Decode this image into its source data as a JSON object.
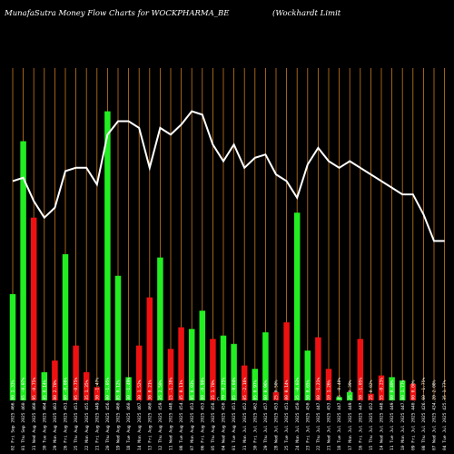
{
  "chart_data": {
    "type": "bar",
    "title": "MunafaSutra  Money Flow  Charts for WOCKPHARMA_BE",
    "subtitle": "(Wockhardt Limit",
    "center_marker": "C",
    "colors": {
      "background": "#000000",
      "grid": "#c87a1e",
      "up": "#22ee22",
      "down": "#ee1111",
      "line": "#ffffff",
      "text": "#ffffff"
    },
    "categories": [
      "02 Fri Sep 2025 466.80 1.33%",
      "01 Thu Sep 2025 460.65 -0.07%",
      "31 Wed Aug 2025 460.95 -0.75%",
      "30 Tue Aug 2025 464.45 0.14%",
      "29 Mon Aug 2025 463.80 2.70%",
      "26 Fri Aug 2025 451.60 -0.08%",
      "25 Thu Aug 2025 451.95 -0.75%",
      "22 Mon Aug 2025 455.35 1.35%",
      "21 Fri Aug 2025 449.30 -1.47%",
      "20 Thu Aug 2025 456.00 -1.05%",
      "19 Wed Aug 2025 460.85 0.12%",
      "18 Tue Aug 2025 460.30 -1.49%",
      "14 Mon Aug 2025 467.30 1.52%",
      "13 Fri Aug 2025 460.30 0.21%",
      "12 Thu Aug 2025 459.35 2.50%",
      "11 Wed Aug 2025 448.15 -1.38%",
      "08 Tue Aug 2025 454.45 0.11%",
      "07 Mon Aug 2025 453.95 0.03%",
      "06 Fri Aug 2025 453.80 -0.99%",
      "05 Thu Aug 2025 458.35 1.70%",
      "04 Wed Aug 2025 450.70 -0.25%",
      "01 Tue Aug 2025 451.85 -0.04%",
      "31 Mon Jul 2025 452.05 -2.16%",
      "30 Fri Jul 2025 462.05 0.97%",
      "29 Thu Jul 2025 457.60 0.96%",
      "28 Wed Jul 2025 453.25 0.50%",
      "25 Tue Jul 2025 451.00 0.14%",
      "24 Mon Jul 2025 450.35 -0.03%",
      "23 Fri Jul 2025 450.50 0.65%",
      "22 Thu Jul 2025 447.60 -1.21%",
      "21 Wed Jul 2025 453.10 1.26%",
      "18 Tue Jul 2025 447.45 -0.40%",
      "17 Mon Jul 2025 449.25 0.39%",
      "16 Fri Jul 2025 447.50 -1.05%",
      "15 Thu Jul 2025 452.25 0.82%",
      "14 Wed Jul 2025 448.55 -0.23%",
      "11 Tue Jul 2025 449.60 0.40%",
      "10 Mon Jul 2025 447.80 1.77%",
      "09 Fri Jul 2025 440.00 0.00%",
      "08 Thu Jul 2025 426.60 -1.75%",
      "07 Wed Jul 2025 434.20 2.08%",
      "04 Tue Jul 2025 425.35 1.77%"
    ],
    "bar_values": [
      64,
      156,
      110,
      17,
      24,
      88,
      33,
      17,
      8,
      174,
      75,
      14,
      33,
      62,
      86,
      31,
      44,
      43,
      54,
      37,
      39,
      34,
      21,
      19,
      41,
      5,
      47,
      113,
      30,
      38,
      19,
      2,
      5,
      37,
      4,
      15,
      14,
      12,
      10,
      0,
      0,
      0
    ],
    "bar_directions": [
      "up",
      "up",
      "down",
      "up",
      "down",
      "up",
      "down",
      "down",
      "down",
      "up",
      "up",
      "up",
      "down",
      "down",
      "up",
      "down",
      "down",
      "up",
      "up",
      "down",
      "up",
      "up",
      "down",
      "up",
      "up",
      "down",
      "down",
      "up",
      "up",
      "down",
      "down",
      "up",
      "up",
      "down",
      "down",
      "down",
      "up",
      "up",
      "down",
      "down",
      "down",
      "up"
    ],
    "line_values": [
      66,
      67,
      60,
      55,
      58,
      69,
      70,
      70,
      65,
      80,
      84,
      84,
      82,
      70,
      82,
      80,
      83,
      87,
      86,
      77,
      72,
      77,
      70,
      73,
      74,
      68,
      66,
      61,
      71,
      76,
      72,
      70,
      72,
      70,
      68,
      66,
      64,
      62,
      62,
      56,
      48,
      48
    ],
    "ylim": [
      0,
      200
    ],
    "line_ylim": [
      0,
      100
    ]
  }
}
